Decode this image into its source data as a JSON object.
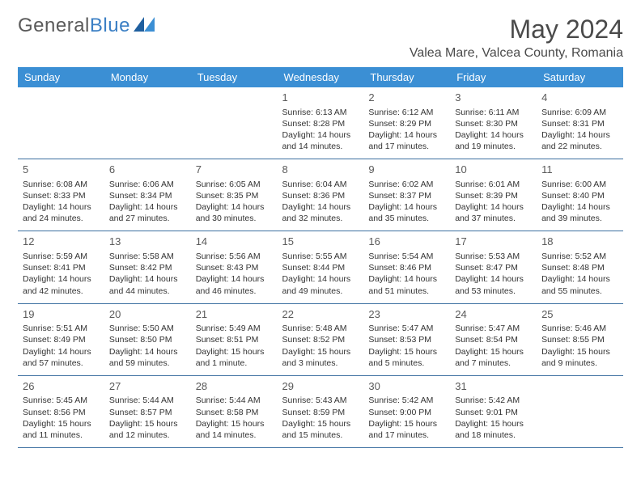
{
  "brand": {
    "part1": "General",
    "part2": "Blue"
  },
  "title": "May 2024",
  "location": "Valea Mare, Valcea County, Romania",
  "colors": {
    "header_bg": "#3b8fd4",
    "header_text": "#ffffff",
    "border": "#3b6fa0",
    "text": "#333333",
    "brand_gray": "#5a5a5a",
    "brand_blue": "#3b7fc4"
  },
  "dayHeaders": [
    "Sunday",
    "Monday",
    "Tuesday",
    "Wednesday",
    "Thursday",
    "Friday",
    "Saturday"
  ],
  "weeks": [
    [
      null,
      null,
      null,
      {
        "d": "1",
        "sr": "6:13 AM",
        "ss": "8:28 PM",
        "dl": "14 hours and 14 minutes."
      },
      {
        "d": "2",
        "sr": "6:12 AM",
        "ss": "8:29 PM",
        "dl": "14 hours and 17 minutes."
      },
      {
        "d": "3",
        "sr": "6:11 AM",
        "ss": "8:30 PM",
        "dl": "14 hours and 19 minutes."
      },
      {
        "d": "4",
        "sr": "6:09 AM",
        "ss": "8:31 PM",
        "dl": "14 hours and 22 minutes."
      }
    ],
    [
      {
        "d": "5",
        "sr": "6:08 AM",
        "ss": "8:33 PM",
        "dl": "14 hours and 24 minutes."
      },
      {
        "d": "6",
        "sr": "6:06 AM",
        "ss": "8:34 PM",
        "dl": "14 hours and 27 minutes."
      },
      {
        "d": "7",
        "sr": "6:05 AM",
        "ss": "8:35 PM",
        "dl": "14 hours and 30 minutes."
      },
      {
        "d": "8",
        "sr": "6:04 AM",
        "ss": "8:36 PM",
        "dl": "14 hours and 32 minutes."
      },
      {
        "d": "9",
        "sr": "6:02 AM",
        "ss": "8:37 PM",
        "dl": "14 hours and 35 minutes."
      },
      {
        "d": "10",
        "sr": "6:01 AM",
        "ss": "8:39 PM",
        "dl": "14 hours and 37 minutes."
      },
      {
        "d": "11",
        "sr": "6:00 AM",
        "ss": "8:40 PM",
        "dl": "14 hours and 39 minutes."
      }
    ],
    [
      {
        "d": "12",
        "sr": "5:59 AM",
        "ss": "8:41 PM",
        "dl": "14 hours and 42 minutes."
      },
      {
        "d": "13",
        "sr": "5:58 AM",
        "ss": "8:42 PM",
        "dl": "14 hours and 44 minutes."
      },
      {
        "d": "14",
        "sr": "5:56 AM",
        "ss": "8:43 PM",
        "dl": "14 hours and 46 minutes."
      },
      {
        "d": "15",
        "sr": "5:55 AM",
        "ss": "8:44 PM",
        "dl": "14 hours and 49 minutes."
      },
      {
        "d": "16",
        "sr": "5:54 AM",
        "ss": "8:46 PM",
        "dl": "14 hours and 51 minutes."
      },
      {
        "d": "17",
        "sr": "5:53 AM",
        "ss": "8:47 PM",
        "dl": "14 hours and 53 minutes."
      },
      {
        "d": "18",
        "sr": "5:52 AM",
        "ss": "8:48 PM",
        "dl": "14 hours and 55 minutes."
      }
    ],
    [
      {
        "d": "19",
        "sr": "5:51 AM",
        "ss": "8:49 PM",
        "dl": "14 hours and 57 minutes."
      },
      {
        "d": "20",
        "sr": "5:50 AM",
        "ss": "8:50 PM",
        "dl": "14 hours and 59 minutes."
      },
      {
        "d": "21",
        "sr": "5:49 AM",
        "ss": "8:51 PM",
        "dl": "15 hours and 1 minute."
      },
      {
        "d": "22",
        "sr": "5:48 AM",
        "ss": "8:52 PM",
        "dl": "15 hours and 3 minutes."
      },
      {
        "d": "23",
        "sr": "5:47 AM",
        "ss": "8:53 PM",
        "dl": "15 hours and 5 minutes."
      },
      {
        "d": "24",
        "sr": "5:47 AM",
        "ss": "8:54 PM",
        "dl": "15 hours and 7 minutes."
      },
      {
        "d": "25",
        "sr": "5:46 AM",
        "ss": "8:55 PM",
        "dl": "15 hours and 9 minutes."
      }
    ],
    [
      {
        "d": "26",
        "sr": "5:45 AM",
        "ss": "8:56 PM",
        "dl": "15 hours and 11 minutes."
      },
      {
        "d": "27",
        "sr": "5:44 AM",
        "ss": "8:57 PM",
        "dl": "15 hours and 12 minutes."
      },
      {
        "d": "28",
        "sr": "5:44 AM",
        "ss": "8:58 PM",
        "dl": "15 hours and 14 minutes."
      },
      {
        "d": "29",
        "sr": "5:43 AM",
        "ss": "8:59 PM",
        "dl": "15 hours and 15 minutes."
      },
      {
        "d": "30",
        "sr": "5:42 AM",
        "ss": "9:00 PM",
        "dl": "15 hours and 17 minutes."
      },
      {
        "d": "31",
        "sr": "5:42 AM",
        "ss": "9:01 PM",
        "dl": "15 hours and 18 minutes."
      },
      null
    ]
  ],
  "labels": {
    "sunrise": "Sunrise:",
    "sunset": "Sunset:",
    "daylight": "Daylight:"
  }
}
